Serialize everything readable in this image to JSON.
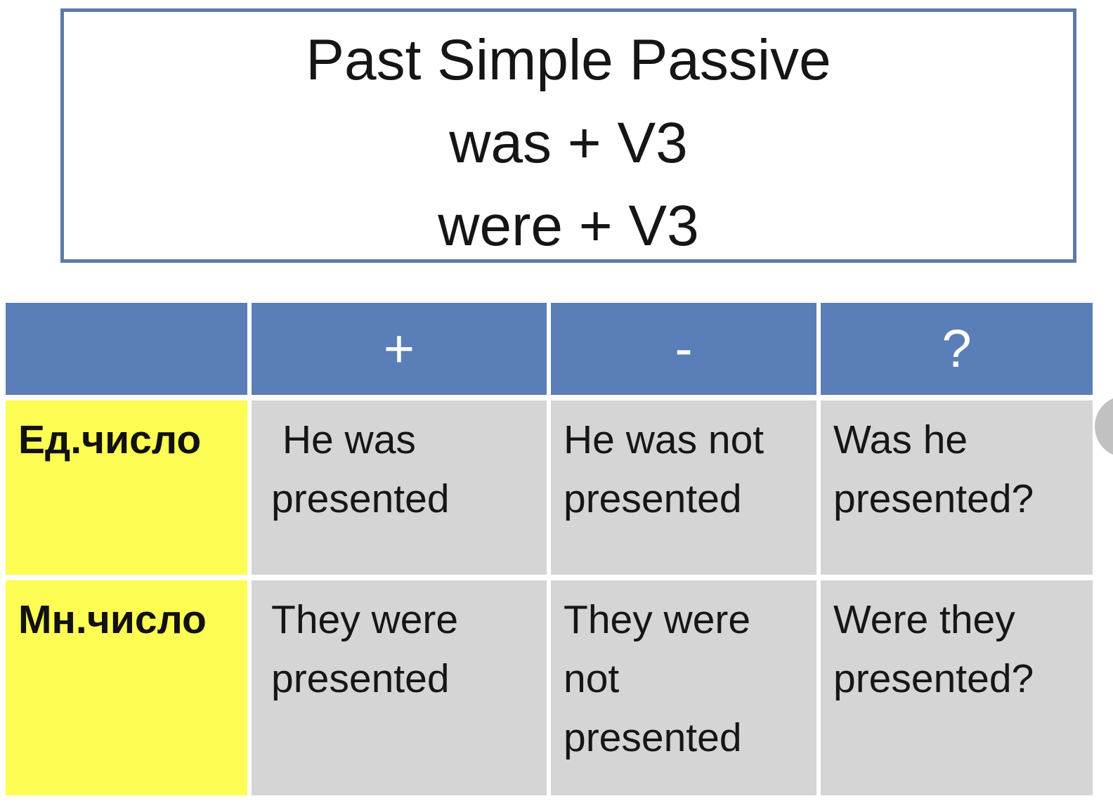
{
  "title": {
    "line1": "Past Simple Passive",
    "line2": "was + V3",
    "line3": "were + V3"
  },
  "table": {
    "header": {
      "corner": "",
      "plus": "+",
      "minus": "-",
      "question": "?"
    },
    "rows": [
      {
        "label": "Ед.число",
        "plus": " He was\npresented",
        "minus": "He was not\npresented",
        "question": "Was he\npresented?"
      },
      {
        "label": "Мн.число",
        "plus": "They were\npresented",
        "minus": "They were\nnot\npresented",
        "question": "Were they\npresented?"
      }
    ]
  },
  "colors": {
    "header_blue": "#5a7eb8",
    "title_border_blue": "#5d7ba8",
    "row_label_yellow": "#fdfd53",
    "cell_gray": "#d5d5d5",
    "scroll_thumb_gray": "#c1c1c1",
    "text_black": "#161616",
    "header_text_white": "#ffffff",
    "background_white": "#ffffff"
  }
}
